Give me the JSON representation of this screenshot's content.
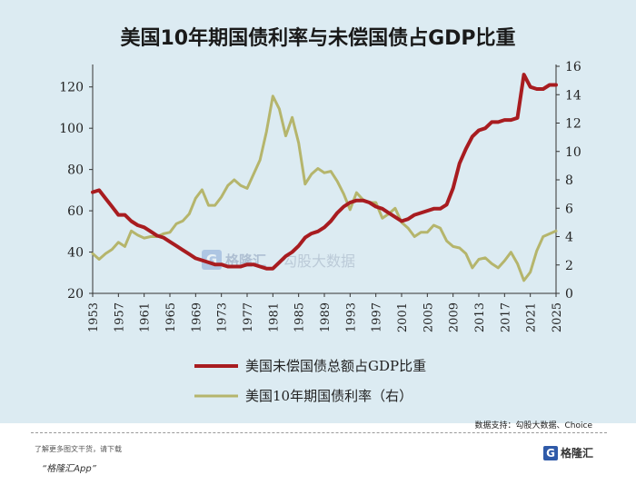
{
  "title": "美国10年期国债利率与未偿国债占GDP比重",
  "source": "数据支持：勾股大数据、Choice",
  "footer_line1": "了解更多图文干货，请下载",
  "footer_line2": "“格隆汇App”",
  "brand_name": "格隆汇",
  "watermark_name": "格隆汇",
  "watermark_name2": "勾股大数据",
  "colors": {
    "background": "#dcebf2",
    "debt": "#a81c20",
    "yield": "#b5b56c"
  },
  "chart_data": {
    "type": "line",
    "title": "美国10年期国债利率与未偿国债占GDP比重",
    "x_ticks": [
      "1953",
      "1957",
      "1961",
      "1965",
      "1969",
      "1973",
      "1977",
      "1981",
      "1985",
      "1989",
      "1993",
      "1997",
      "2001",
      "2005",
      "2009",
      "2013",
      "2017",
      "2021",
      "2025"
    ],
    "xlim": [
      1953,
      2025
    ],
    "y_left": {
      "ticks": [
        "20",
        "40",
        "60",
        "80",
        "100",
        "120"
      ],
      "lim": [
        20,
        130
      ]
    },
    "y_right": {
      "ticks": [
        "0",
        "2",
        "4",
        "6",
        "8",
        "10",
        "12",
        "14",
        "16"
      ],
      "lim": [
        0,
        16
      ]
    },
    "grid": false,
    "legend_position": "bottom",
    "series": [
      {
        "name": "美国未偿国债总额占GDP比重",
        "axis": "left",
        "x": [
          1953,
          1954,
          1955,
          1956,
          1957,
          1958,
          1959,
          1960,
          1961,
          1962,
          1963,
          1964,
          1965,
          1966,
          1967,
          1968,
          1969,
          1970,
          1971,
          1972,
          1973,
          1974,
          1975,
          1976,
          1977,
          1978,
          1979,
          1980,
          1981,
          1982,
          1983,
          1984,
          1985,
          1986,
          1987,
          1988,
          1989,
          1990,
          1991,
          1992,
          1993,
          1994,
          1995,
          1996,
          1997,
          1998,
          1999,
          2000,
          2001,
          2002,
          2003,
          2004,
          2005,
          2006,
          2007,
          2008,
          2009,
          2010,
          2011,
          2012,
          2013,
          2014,
          2015,
          2016,
          2017,
          2018,
          2019,
          2020,
          2021,
          2022,
          2023,
          2024,
          2025
        ],
        "values": [
          69,
          70,
          66,
          62,
          58,
          58,
          55,
          53,
          52,
          50,
          48,
          47,
          45,
          43,
          41,
          39,
          37,
          36,
          35,
          34,
          34,
          33,
          33,
          33,
          34,
          34,
          33,
          32,
          32,
          35,
          38,
          40,
          43,
          47,
          49,
          50,
          52,
          55,
          59,
          62,
          64,
          65,
          65,
          64,
          62,
          61,
          59,
          57,
          55,
          56,
          58,
          59,
          60,
          61,
          61,
          63,
          71,
          83,
          90,
          96,
          99,
          100,
          103,
          103,
          104,
          104,
          105,
          126,
          120,
          119,
          119,
          121,
          121
        ]
      },
      {
        "name": "美国10年期国债利率（右）",
        "axis": "right",
        "x": [
          1953,
          1954,
          1955,
          1956,
          1957,
          1958,
          1959,
          1960,
          1961,
          1962,
          1963,
          1964,
          1965,
          1966,
          1967,
          1968,
          1969,
          1970,
          1971,
          1972,
          1973,
          1974,
          1975,
          1976,
          1977,
          1978,
          1979,
          1980,
          1981,
          1982,
          1983,
          1984,
          1985,
          1986,
          1987,
          1988,
          1989,
          1990,
          1991,
          1992,
          1993,
          1994,
          1995,
          1996,
          1997,
          1998,
          1999,
          2000,
          2001,
          2002,
          2003,
          2004,
          2005,
          2006,
          2007,
          2008,
          2009,
          2010,
          2011,
          2012,
          2013,
          2014,
          2015,
          2016,
          2017,
          2018,
          2019,
          2020,
          2021,
          2022,
          2023,
          2024,
          2025
        ],
        "values": [
          2.8,
          2.4,
          2.8,
          3.1,
          3.6,
          3.3,
          4.4,
          4.1,
          3.9,
          4.0,
          4.0,
          4.2,
          4.3,
          4.9,
          5.1,
          5.6,
          6.7,
          7.3,
          6.2,
          6.2,
          6.8,
          7.6,
          8.0,
          7.6,
          7.4,
          8.4,
          9.4,
          11.4,
          13.9,
          13.0,
          11.1,
          12.4,
          10.6,
          7.7,
          8.4,
          8.8,
          8.5,
          8.6,
          7.9,
          7.0,
          5.9,
          7.1,
          6.6,
          6.4,
          6.4,
          5.3,
          5.6,
          6.0,
          5.0,
          4.6,
          4.0,
          4.3,
          4.3,
          4.8,
          4.6,
          3.7,
          3.3,
          3.2,
          2.8,
          1.8,
          2.4,
          2.5,
          2.1,
          1.8,
          2.3,
          2.9,
          2.1,
          0.9,
          1.5,
          3.0,
          4.0,
          4.2,
          4.4
        ]
      }
    ]
  }
}
